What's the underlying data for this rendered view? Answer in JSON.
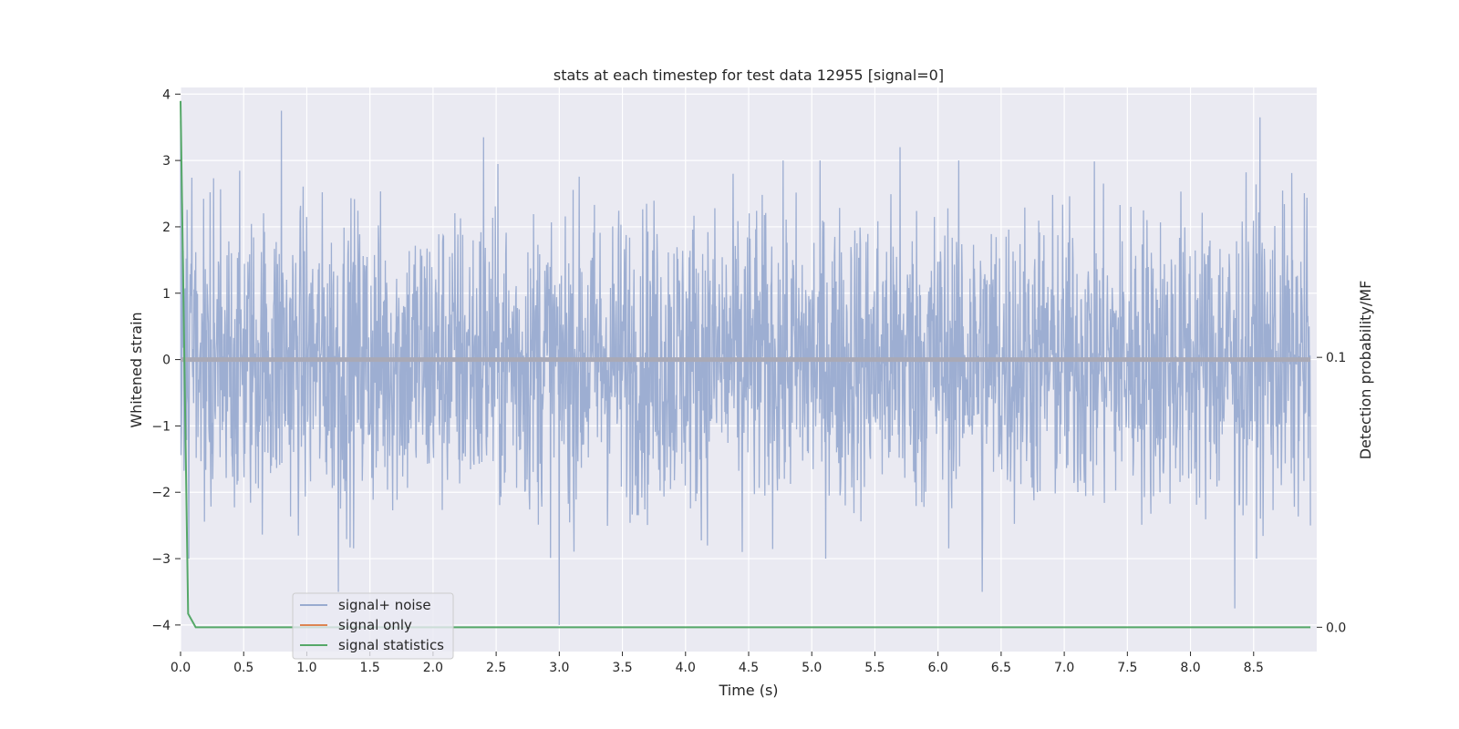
{
  "chart_data": {
    "type": "line",
    "title": "stats at each timestep for test data 12955 [signal=0]",
    "xlabel": "Time (s)",
    "ylabel": "Whitened strain",
    "y2label": "Detection probability/MF",
    "xlim": [
      0.0,
      9.0
    ],
    "ylim": [
      -4.4,
      4.1
    ],
    "y2lim": [
      -0.009,
      0.2
    ],
    "x_ticks": [
      0.0,
      0.5,
      1.0,
      1.5,
      2.0,
      2.5,
      3.0,
      3.5,
      4.0,
      4.5,
      5.0,
      5.5,
      6.0,
      6.5,
      7.0,
      7.5,
      8.0,
      8.5
    ],
    "x_tick_labels": [
      "0.0",
      "0.5",
      "1.0",
      "1.5",
      "2.0",
      "2.5",
      "3.0",
      "3.5",
      "4.0",
      "4.5",
      "5.0",
      "5.5",
      "6.0",
      "6.5",
      "7.0",
      "7.5",
      "8.0",
      "8.5"
    ],
    "y_ticks": [
      4,
      3,
      2,
      1,
      0,
      -1,
      -2,
      -3,
      -4
    ],
    "y_tick_labels": [
      "4",
      "3",
      "2",
      "1",
      "0",
      "−1",
      "−2",
      "−3",
      "−4"
    ],
    "y2_ticks": [
      0.1,
      0.0
    ],
    "y2_tick_labels": [
      "0.1",
      "0.0"
    ],
    "grid": true,
    "legend_position": "lower-left",
    "background_color": "#eaeaf2",
    "series": [
      {
        "name": "signal+ noise",
        "color": "#99abd0",
        "axis": "left",
        "description_points": {
          "x": [
            0.0,
            0.8,
            1.25,
            2.4,
            3.0,
            4.45,
            5.7,
            6.35,
            8.35,
            8.55,
            8.95
          ],
          "y": [
            3.6,
            3.75,
            -3.5,
            3.35,
            -4.0,
            -2.9,
            3.2,
            -3.5,
            -3.75,
            3.65,
            -2.5
          ]
        },
        "amplitude_typical": 1.7
      },
      {
        "name": "signal only",
        "color": "#dd8452",
        "axis": "left",
        "x": [
          0.0,
          8.95
        ],
        "y": [
          0.0,
          0.0
        ]
      },
      {
        "name": "signal statistics",
        "color": "#55a868",
        "axis": "right",
        "x": [
          0.0,
          0.06,
          0.12,
          8.95
        ],
        "y": [
          0.195,
          0.005,
          0.0,
          0.0
        ]
      }
    ],
    "legend": [
      {
        "label": "signal+ noise",
        "color": "#99abd0"
      },
      {
        "label": "signal only",
        "color": "#dd8452"
      },
      {
        "label": "signal statistics",
        "color": "#55a868"
      }
    ]
  }
}
